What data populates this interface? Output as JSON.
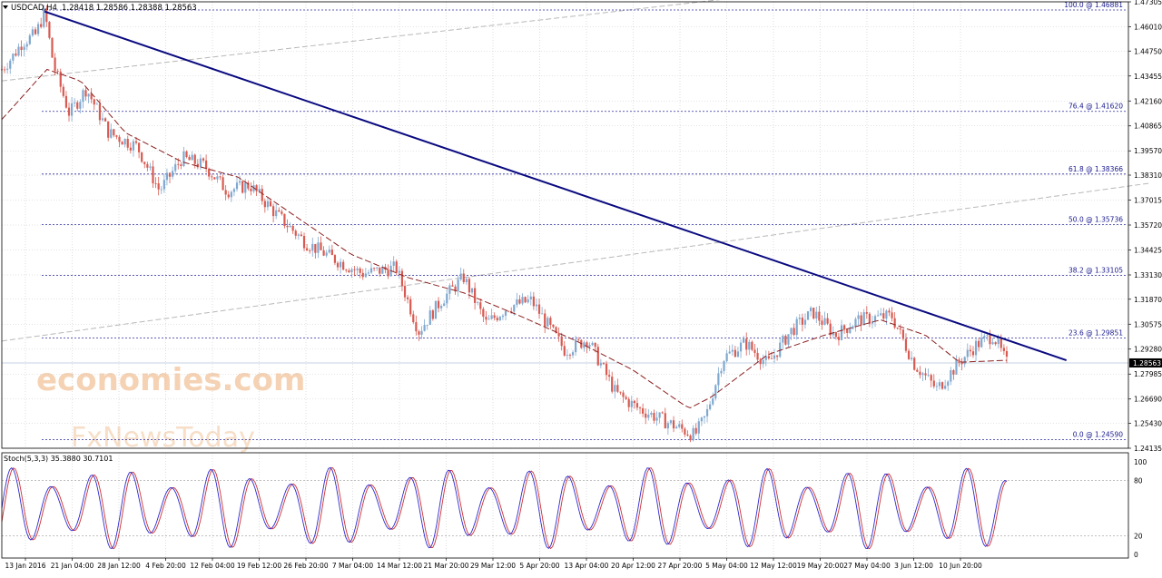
{
  "header": {
    "symbol_label": "USDCAD,H4",
    "ohlc_text": "1.28418 1.28586 1.28388 1.28563"
  },
  "price_panel": {
    "current_price": "1.28563",
    "y_ticks": [
      "1.47305",
      "1.46010",
      "1.44750",
      "1.43455",
      "1.42160",
      "1.40865",
      "1.39570",
      "1.38310",
      "1.37015",
      "1.35720",
      "1.34425",
      "1.33130",
      "1.31870",
      "1.30575",
      "1.29280",
      "1.27985",
      "1.26690",
      "1.25430",
      "1.24135"
    ],
    "fib_levels": [
      {
        "label": "100.0 @ 1.46881",
        "value": 1.46881
      },
      {
        "label": "76.4 @ 1.41620",
        "value": 1.4162
      },
      {
        "label": "61.8 @ 1.38366",
        "value": 1.38366
      },
      {
        "label": "50.0 @ 1.35736",
        "value": 1.35736
      },
      {
        "label": "38.2 @ 1.33105",
        "value": 1.33105
      },
      {
        "label": "23.6 @ 1.29851",
        "value": 1.29851
      },
      {
        "label": "0.0 @ 1.24590",
        "value": 1.2459
      }
    ]
  },
  "stoch_panel": {
    "label": "Stoch(5,3,3) 35.3880 30.7101",
    "y_ticks": [
      "100",
      "80",
      "20",
      "0"
    ]
  },
  "x_axis": {
    "labels": [
      "13 Jan 2016",
      "21 Jan 04:00",
      "28 Jan 12:00",
      "4 Feb 20:00",
      "12 Feb 04:00",
      "19 Feb 12:00",
      "26 Feb 20:00",
      "7 Mar 04:00",
      "14 Mar 12:00",
      "21 Mar 20:00",
      "29 Mar 12:00",
      "5 Apr 20:00",
      "13 Apr 04:00",
      "20 Apr 12:00",
      "27 Apr 20:00",
      "5 May 04:00",
      "12 May 12:00",
      "19 May 20:00",
      "27 May 04:00",
      "3 Jun 12:00",
      "10 Jun 20:00"
    ]
  },
  "watermark": {
    "line1": "economies.com",
    "line2": "FxNewsToday"
  },
  "colors": {
    "bull_candle": "#7fa8d0",
    "bear_candle": "#d85a50",
    "ma_line": "#8b2020",
    "trendline": "#0a0a80",
    "fib_line": "#2a2aa0",
    "channel_line": "#b8b8b8",
    "stoch_main": "#2b2bd0",
    "stoch_signal": "#d03030",
    "grid": "#c8c8c8",
    "watermark": "#f2c49a"
  },
  "chart_data": {
    "type": "candlestick",
    "symbol": "USDCAD",
    "timeframe": "H4",
    "ylim": [
      1.24135,
      1.47305
    ],
    "anchors": [
      {
        "x": 0.0,
        "close": 1.438
      },
      {
        "x": 0.01,
        "close": 1.445
      },
      {
        "x": 0.018,
        "close": 1.452
      },
      {
        "x": 0.03,
        "close": 1.456
      },
      {
        "x": 0.038,
        "close": 1.468
      },
      {
        "x": 0.046,
        "close": 1.44
      },
      {
        "x": 0.06,
        "close": 1.415
      },
      {
        "x": 0.075,
        "close": 1.428
      },
      {
        "x": 0.095,
        "close": 1.405
      },
      {
        "x": 0.12,
        "close": 1.398
      },
      {
        "x": 0.14,
        "close": 1.375
      },
      {
        "x": 0.16,
        "close": 1.392
      },
      {
        "x": 0.18,
        "close": 1.388
      },
      {
        "x": 0.2,
        "close": 1.375
      },
      {
        "x": 0.22,
        "close": 1.378
      },
      {
        "x": 0.245,
        "close": 1.362
      },
      {
        "x": 0.27,
        "close": 1.348
      },
      {
        "x": 0.3,
        "close": 1.338
      },
      {
        "x": 0.32,
        "close": 1.332
      },
      {
        "x": 0.35,
        "close": 1.335
      },
      {
        "x": 0.37,
        "close": 1.302
      },
      {
        "x": 0.39,
        "close": 1.318
      },
      {
        "x": 0.41,
        "close": 1.33
      },
      {
        "x": 0.43,
        "close": 1.306
      },
      {
        "x": 0.45,
        "close": 1.315
      },
      {
        "x": 0.47,
        "close": 1.318
      },
      {
        "x": 0.5,
        "close": 1.292
      },
      {
        "x": 0.52,
        "close": 1.298
      },
      {
        "x": 0.545,
        "close": 1.27
      },
      {
        "x": 0.565,
        "close": 1.262
      },
      {
        "x": 0.59,
        "close": 1.255
      },
      {
        "x": 0.615,
        "close": 1.248
      },
      {
        "x": 0.625,
        "close": 1.258
      },
      {
        "x": 0.64,
        "close": 1.288
      },
      {
        "x": 0.66,
        "close": 1.296
      },
      {
        "x": 0.68,
        "close": 1.285
      },
      {
        "x": 0.7,
        "close": 1.302
      },
      {
        "x": 0.72,
        "close": 1.312
      },
      {
        "x": 0.74,
        "close": 1.3
      },
      {
        "x": 0.76,
        "close": 1.308
      },
      {
        "x": 0.79,
        "close": 1.31
      },
      {
        "x": 0.81,
        "close": 1.285
      },
      {
        "x": 0.83,
        "close": 1.272
      },
      {
        "x": 0.85,
        "close": 1.286
      },
      {
        "x": 0.865,
        "close": 1.295
      },
      {
        "x": 0.88,
        "close": 1.3
      },
      {
        "x": 0.892,
        "close": 1.2856
      }
    ],
    "moving_average": [
      {
        "x": 0.0,
        "value": 1.412
      },
      {
        "x": 0.04,
        "value": 1.438
      },
      {
        "x": 0.07,
        "value": 1.432
      },
      {
        "x": 0.11,
        "value": 1.405
      },
      {
        "x": 0.16,
        "value": 1.39
      },
      {
        "x": 0.21,
        "value": 1.382
      },
      {
        "x": 0.26,
        "value": 1.362
      },
      {
        "x": 0.31,
        "value": 1.342
      },
      {
        "x": 0.36,
        "value": 1.33
      },
      {
        "x": 0.41,
        "value": 1.322
      },
      {
        "x": 0.46,
        "value": 1.31
      },
      {
        "x": 0.51,
        "value": 1.297
      },
      {
        "x": 0.56,
        "value": 1.282
      },
      {
        "x": 0.61,
        "value": 1.262
      },
      {
        "x": 0.63,
        "value": 1.268
      },
      {
        "x": 0.68,
        "value": 1.29
      },
      {
        "x": 0.73,
        "value": 1.3
      },
      {
        "x": 0.78,
        "value": 1.308
      },
      {
        "x": 0.82,
        "value": 1.3
      },
      {
        "x": 0.85,
        "value": 1.286
      },
      {
        "x": 0.892,
        "value": 1.287
      }
    ],
    "trendline": {
      "from": {
        "x": 0.038,
        "value": 1.468
      },
      "to": {
        "x": 0.945,
        "value": 1.287
      }
    },
    "channel_lines": [
      {
        "from": {
          "x": 0.0,
          "value": 1.432
        },
        "to": {
          "x": 0.68,
          "value": 1.477
        }
      },
      {
        "from": {
          "x": 0.0,
          "value": 1.297
        },
        "to": {
          "x": 1.02,
          "value": 1.379
        }
      }
    ],
    "stoch_levels": [
      80,
      20
    ],
    "stoch_ylim": [
      0,
      100
    ]
  }
}
